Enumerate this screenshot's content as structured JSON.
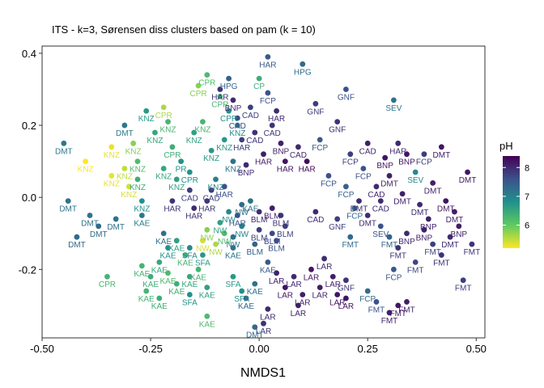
{
  "chart_data": {
    "type": "scatter",
    "title": "ITS - k=3, Sørensen diss clusters based on pam (k = 10)",
    "xlabel": "NMDS1",
    "ylabel": "",
    "xlim": [
      -0.5,
      0.52
    ],
    "ylim": [
      -0.39,
      0.42
    ],
    "xticks": [
      -0.5,
      -0.25,
      0.0,
      0.25,
      0.5
    ],
    "xtick_labels": [
      "-0.50",
      "-0.25",
      "0.00",
      "0.25",
      "0.50"
    ],
    "yticks": [
      -0.2,
      0.0,
      0.2,
      0.4
    ],
    "ytick_labels": [
      "-0.2",
      "0.0",
      "0.2",
      "0.4"
    ],
    "grid": false,
    "legend": {
      "title": "pH",
      "position": "right",
      "range": [
        5.2,
        8.4
      ],
      "ticks": [
        6,
        7,
        8
      ],
      "tick_labels": [
        "6",
        "7",
        "8"
      ],
      "colors": [
        "#fde725",
        "#5ec962",
        "#21918c",
        "#3b528b",
        "#440154"
      ]
    },
    "points": [
      {
        "x": -0.45,
        "y": 0.15,
        "ph": 7.1,
        "label": "DMT"
      },
      {
        "x": -0.44,
        "y": -0.01,
        "ph": 7.2,
        "label": "DMT"
      },
      {
        "x": -0.42,
        "y": -0.11,
        "ph": 7.3,
        "label": "DMT"
      },
      {
        "x": -0.39,
        "y": -0.05,
        "ph": 7.2,
        "label": "DMT"
      },
      {
        "x": -0.37,
        "y": -0.08,
        "ph": 7.3,
        "label": "DMT"
      },
      {
        "x": -0.33,
        "y": -0.06,
        "ph": 7.2,
        "label": "DMT"
      },
      {
        "x": -0.31,
        "y": 0.2,
        "ph": 7.1,
        "label": "DMT"
      },
      {
        "x": -0.4,
        "y": 0.1,
        "ph": 5.2,
        "label": "KNZ"
      },
      {
        "x": -0.34,
        "y": 0.06,
        "ph": 5.3,
        "label": "KNZ"
      },
      {
        "x": -0.34,
        "y": 0.14,
        "ph": 5.3,
        "label": "KNZ"
      },
      {
        "x": -0.31,
        "y": 0.08,
        "ph": 5.5,
        "label": "KNZ"
      },
      {
        "x": -0.3,
        "y": 0.03,
        "ph": 5.4,
        "label": "KNZ"
      },
      {
        "x": -0.29,
        "y": 0.15,
        "ph": 5.8,
        "label": "KNZ"
      },
      {
        "x": -0.28,
        "y": 0.1,
        "ph": 6.2,
        "label": "KNZ"
      },
      {
        "x": -0.28,
        "y": 0.05,
        "ph": 6.4,
        "label": "KNZ"
      },
      {
        "x": -0.27,
        "y": -0.01,
        "ph": 6.8,
        "label": "KNZ"
      },
      {
        "x": -0.26,
        "y": 0.24,
        "ph": 6.7,
        "label": "KNZ"
      },
      {
        "x": -0.24,
        "y": 0.18,
        "ph": 6.5,
        "label": "KNZ"
      },
      {
        "x": -0.22,
        "y": 0.25,
        "ph": 5.6,
        "label": "CPR"
      },
      {
        "x": -0.22,
        "y": 0.08,
        "ph": 6.5,
        "label": "KNZ"
      },
      {
        "x": -0.21,
        "y": 0.21,
        "ph": 6.3,
        "label": "KNZ"
      },
      {
        "x": -0.2,
        "y": 0.14,
        "ph": 6.4,
        "label": "CPR"
      },
      {
        "x": -0.19,
        "y": 0.05,
        "ph": 6.6,
        "label": "KNZ"
      },
      {
        "x": -0.18,
        "y": 0.1,
        "ph": 6.8,
        "label": "PR"
      },
      {
        "x": -0.16,
        "y": 0.07,
        "ph": 6.8,
        "label": "CPR"
      },
      {
        "x": -0.15,
        "y": 0.18,
        "ph": 6.6,
        "label": "KNZ"
      },
      {
        "x": -0.14,
        "y": 0.31,
        "ph": 5.8,
        "label": "CPR"
      },
      {
        "x": -0.13,
        "y": 0.21,
        "ph": 6.3,
        "label": "KNZ"
      },
      {
        "x": -0.12,
        "y": 0.34,
        "ph": 6.2,
        "label": "CPR"
      },
      {
        "x": -0.11,
        "y": 0.13,
        "ph": 6.7,
        "label": "KNZ"
      },
      {
        "x": -0.1,
        "y": 0.05,
        "ph": 7.0,
        "label": "KNZ"
      },
      {
        "x": -0.09,
        "y": 0.28,
        "ph": 6.3,
        "label": "CPR"
      },
      {
        "x": -0.08,
        "y": 0.16,
        "ph": 6.7,
        "label": "KNZ"
      },
      {
        "x": -0.07,
        "y": 0.24,
        "ph": 6.8,
        "label": "CPR"
      },
      {
        "x": -0.06,
        "y": 0.1,
        "ph": 7.2,
        "label": "KNZ"
      },
      {
        "x": -0.05,
        "y": 0.2,
        "ph": 6.9,
        "label": "KNZ"
      },
      {
        "x": -0.16,
        "y": 0.02,
        "ph": 7.8,
        "label": "CAD"
      },
      {
        "x": -0.2,
        "y": -0.01,
        "ph": 7.9,
        "label": "HAR"
      },
      {
        "x": -0.15,
        "y": -0.03,
        "ph": 8.0,
        "label": "HAR"
      },
      {
        "x": -0.12,
        "y": -0.01,
        "ph": 7.9,
        "label": "HAR"
      },
      {
        "x": -0.11,
        "y": 0.02,
        "ph": 7.8,
        "label": "CAD"
      },
      {
        "x": -0.08,
        "y": 0.03,
        "ph": 7.6,
        "label": "HAR"
      },
      {
        "x": -0.09,
        "y": 0.3,
        "ph": 7.9,
        "label": "HAR"
      },
      {
        "x": -0.07,
        "y": 0.33,
        "ph": 7.4,
        "label": "HPG"
      },
      {
        "x": -0.06,
        "y": 0.27,
        "ph": 8.0,
        "label": "BNP"
      },
      {
        "x": -0.05,
        "y": 0.22,
        "ph": 7.7,
        "label": "CAD"
      },
      {
        "x": -0.04,
        "y": 0.16,
        "ph": 7.8,
        "label": "HAR"
      },
      {
        "x": -0.03,
        "y": 0.09,
        "ph": 8.0,
        "label": "BNP"
      },
      {
        "x": -0.02,
        "y": 0.25,
        "ph": 7.8,
        "label": "CAD"
      },
      {
        "x": -0.01,
        "y": 0.18,
        "ph": 7.9,
        "label": "CAD"
      },
      {
        "x": 0.0,
        "y": 0.33,
        "ph": 6.4,
        "label": "CP"
      },
      {
        "x": 0.01,
        "y": 0.12,
        "ph": 8.1,
        "label": "HAR"
      },
      {
        "x": 0.02,
        "y": 0.29,
        "ph": 7.6,
        "label": "FCP"
      },
      {
        "x": 0.03,
        "y": 0.2,
        "ph": 7.9,
        "label": "CAD"
      },
      {
        "x": 0.04,
        "y": 0.24,
        "ph": 8.0,
        "label": "HAR"
      },
      {
        "x": 0.05,
        "y": 0.15,
        "ph": 8.1,
        "label": "BNP"
      },
      {
        "x": 0.06,
        "y": 0.1,
        "ph": 8.2,
        "label": "HAR"
      },
      {
        "x": 0.02,
        "y": 0.39,
        "ph": 7.5,
        "label": "HAR"
      },
      {
        "x": 0.1,
        "y": 0.37,
        "ph": 7.3,
        "label": "HPG"
      },
      {
        "x": 0.09,
        "y": 0.14,
        "ph": 8.0,
        "label": "CAD"
      },
      {
        "x": 0.11,
        "y": 0.1,
        "ph": 8.3,
        "label": "HAR"
      },
      {
        "x": 0.13,
        "y": 0.26,
        "ph": 7.8,
        "label": "GNF"
      },
      {
        "x": 0.14,
        "y": 0.16,
        "ph": 7.5,
        "label": "FCP"
      },
      {
        "x": 0.16,
        "y": 0.06,
        "ph": 7.6,
        "label": "FCP"
      },
      {
        "x": 0.18,
        "y": 0.21,
        "ph": 7.9,
        "label": "GNF"
      },
      {
        "x": 0.2,
        "y": 0.3,
        "ph": 7.6,
        "label": "GNF"
      },
      {
        "x": 0.21,
        "y": 0.12,
        "ph": 7.8,
        "label": "FCP"
      },
      {
        "x": 0.2,
        "y": 0.03,
        "ph": 7.4,
        "label": "FCP"
      },
      {
        "x": 0.22,
        "y": -0.03,
        "ph": 7.3,
        "label": "FCP"
      },
      {
        "x": 0.24,
        "y": 0.08,
        "ph": 7.6,
        "label": "FCP"
      },
      {
        "x": 0.25,
        "y": 0.15,
        "ph": 8.1,
        "label": "CAD"
      },
      {
        "x": 0.27,
        "y": 0.03,
        "ph": 8.0,
        "label": "CAD"
      },
      {
        "x": 0.28,
        "y": -0.01,
        "ph": 8.0,
        "label": "CAD"
      },
      {
        "x": 0.29,
        "y": 0.11,
        "ph": 8.2,
        "label": "BNP"
      },
      {
        "x": 0.3,
        "y": 0.06,
        "ph": 8.1,
        "label": "DMT"
      },
      {
        "x": 0.31,
        "y": 0.27,
        "ph": 7.2,
        "label": "SEV"
      },
      {
        "x": 0.32,
        "y": 0.15,
        "ph": 8.0,
        "label": "HAR"
      },
      {
        "x": 0.33,
        "y": 0.01,
        "ph": 8.1,
        "label": "DMT"
      },
      {
        "x": 0.34,
        "y": 0.12,
        "ph": 8.2,
        "label": "BNP"
      },
      {
        "x": 0.36,
        "y": 0.07,
        "ph": 6.9,
        "label": "SEV"
      },
      {
        "x": 0.37,
        "y": -0.02,
        "ph": 8.0,
        "label": "DMT"
      },
      {
        "x": 0.38,
        "y": 0.12,
        "ph": 7.8,
        "label": "FCP"
      },
      {
        "x": 0.39,
        "y": -0.06,
        "ph": 8.1,
        "label": "BNP"
      },
      {
        "x": 0.4,
        "y": 0.04,
        "ph": 8.1,
        "label": "DMT"
      },
      {
        "x": 0.42,
        "y": 0.14,
        "ph": 8.2,
        "label": "DMT"
      },
      {
        "x": 0.43,
        "y": -0.01,
        "ph": 8.2,
        "label": "DMT"
      },
      {
        "x": 0.45,
        "y": -0.04,
        "ph": 8.1,
        "label": "DMT"
      },
      {
        "x": 0.46,
        "y": -0.08,
        "ph": 8.1,
        "label": "BNP"
      },
      {
        "x": 0.48,
        "y": 0.07,
        "ph": 8.2,
        "label": "DMT"
      },
      {
        "x": 0.49,
        "y": -0.13,
        "ph": 7.9,
        "label": "FMT"
      },
      {
        "x": 0.47,
        "y": -0.23,
        "ph": 7.8,
        "label": "FMT"
      },
      {
        "x": 0.13,
        "y": -0.04,
        "ph": 8.0,
        "label": "CAD"
      },
      {
        "x": 0.18,
        "y": -0.06,
        "ph": 7.8,
        "label": "GNF"
      },
      {
        "x": 0.21,
        "y": -0.11,
        "ph": 7.3,
        "label": "FMT"
      },
      {
        "x": 0.23,
        "y": -0.01,
        "ph": 8.0,
        "label": "DMT"
      },
      {
        "x": 0.25,
        "y": -0.05,
        "ph": 8.0,
        "label": "DMT"
      },
      {
        "x": 0.28,
        "y": -0.08,
        "ph": 7.6,
        "label": "SEV"
      },
      {
        "x": 0.3,
        "y": -0.11,
        "ph": 7.4,
        "label": "FMT"
      },
      {
        "x": 0.31,
        "y": -0.2,
        "ph": 7.5,
        "label": "FCP"
      },
      {
        "x": 0.32,
        "y": -0.14,
        "ph": 7.9,
        "label": "FMT"
      },
      {
        "x": 0.34,
        "y": -0.1,
        "ph": 8.0,
        "label": "BNP"
      },
      {
        "x": 0.36,
        "y": -0.18,
        "ph": 7.7,
        "label": "FMT"
      },
      {
        "x": 0.38,
        "y": -0.09,
        "ph": 8.1,
        "label": "BNP"
      },
      {
        "x": 0.4,
        "y": -0.13,
        "ph": 7.8,
        "label": "FMT"
      },
      {
        "x": 0.42,
        "y": -0.16,
        "ph": 7.9,
        "label": "FMT"
      },
      {
        "x": 0.44,
        "y": -0.11,
        "ph": 8.0,
        "label": "DMT"
      },
      {
        "x": 0.25,
        "y": -0.26,
        "ph": 7.3,
        "label": "FCP"
      },
      {
        "x": 0.27,
        "y": -0.29,
        "ph": 7.6,
        "label": "FMT"
      },
      {
        "x": 0.3,
        "y": -0.32,
        "ph": 8.1,
        "label": "FMT"
      },
      {
        "x": 0.32,
        "y": -0.3,
        "ph": 8.2,
        "label": "FMT"
      },
      {
        "x": 0.34,
        "y": -0.29,
        "ph": 8.1,
        "label": "FMT"
      },
      {
        "x": -0.02,
        "y": -0.01,
        "ph": 7.2,
        "label": "KAE"
      },
      {
        "x": -0.05,
        "y": -0.05,
        "ph": 7.6,
        "label": "HAR"
      },
      {
        "x": 0.0,
        "y": -0.09,
        "ph": 7.8,
        "label": "BLM"
      },
      {
        "x": 0.03,
        "y": -0.1,
        "ph": 7.7,
        "label": "BLM"
      },
      {
        "x": 0.05,
        "y": -0.05,
        "ph": 7.9,
        "label": "BLM"
      },
      {
        "x": 0.04,
        "y": -0.12,
        "ph": 7.6,
        "label": "BLM"
      },
      {
        "x": -0.01,
        "y": -0.13,
        "ph": 7.4,
        "label": "BLM"
      },
      {
        "x": -0.06,
        "y": -0.11,
        "ph": 7.2,
        "label": "NW"
      },
      {
        "x": 0.02,
        "y": -0.18,
        "ph": 7.5,
        "label": "KAE"
      },
      {
        "x": 0.0,
        "y": -0.04,
        "ph": 8.0,
        "label": "BLM"
      },
      {
        "x": -0.09,
        "y": -0.07,
        "ph": 6.6,
        "label": "NW"
      },
      {
        "x": -0.12,
        "y": -0.09,
        "ph": 5.8,
        "label": "NW"
      },
      {
        "x": -0.13,
        "y": -0.12,
        "ph": 5.4,
        "label": "NW"
      },
      {
        "x": -0.1,
        "y": -0.13,
        "ph": 5.6,
        "label": "NW"
      },
      {
        "x": -0.08,
        "y": -0.1,
        "ph": 6.2,
        "label": "NW"
      },
      {
        "x": -0.04,
        "y": -0.08,
        "ph": 7.0,
        "label": "NW"
      },
      {
        "x": -0.04,
        "y": -0.02,
        "ph": 7.3,
        "label": "NW"
      },
      {
        "x": -0.07,
        "y": -0.04,
        "ph": 6.9,
        "label": "NW"
      },
      {
        "x": 0.03,
        "y": -0.03,
        "ph": 8.1,
        "label": "BLM"
      },
      {
        "x": 0.06,
        "y": -0.08,
        "ph": 7.8,
        "label": "BLM"
      },
      {
        "x": -0.27,
        "y": -0.05,
        "ph": 7.1,
        "label": "KAE"
      },
      {
        "x": -0.22,
        "y": -0.1,
        "ph": 7.2,
        "label": "KAE"
      },
      {
        "x": -0.21,
        "y": -0.14,
        "ph": 6.8,
        "label": "KAE"
      },
      {
        "x": -0.19,
        "y": -0.12,
        "ph": 6.6,
        "label": "KAE"
      },
      {
        "x": -0.17,
        "y": -0.16,
        "ph": 6.3,
        "label": "KAE"
      },
      {
        "x": -0.27,
        "y": -0.19,
        "ph": 6.3,
        "label": "KAE"
      },
      {
        "x": -0.25,
        "y": -0.22,
        "ph": 6.4,
        "label": "KAE"
      },
      {
        "x": -0.23,
        "y": -0.18,
        "ph": 6.5,
        "label": "KAE"
      },
      {
        "x": -0.21,
        "y": -0.21,
        "ph": 6.2,
        "label": "KAE"
      },
      {
        "x": -0.19,
        "y": -0.24,
        "ph": 6.4,
        "label": "KAE"
      },
      {
        "x": -0.16,
        "y": -0.22,
        "ph": 6.5,
        "label": "KAE"
      },
      {
        "x": -0.14,
        "y": -0.2,
        "ph": 6.3,
        "label": "KAE"
      },
      {
        "x": -0.12,
        "y": -0.25,
        "ph": 6.6,
        "label": "KAE"
      },
      {
        "x": -0.26,
        "y": -0.26,
        "ph": 6.3,
        "label": "KAE"
      },
      {
        "x": -0.23,
        "y": -0.28,
        "ph": 6.4,
        "label": "KAE"
      },
      {
        "x": -0.12,
        "y": -0.33,
        "ph": 6.2,
        "label": "KAE"
      },
      {
        "x": -0.16,
        "y": -0.14,
        "ph": 6.9,
        "label": "SFA"
      },
      {
        "x": -0.13,
        "y": -0.16,
        "ph": 6.7,
        "label": "SFA"
      },
      {
        "x": -0.16,
        "y": -0.27,
        "ph": 6.8,
        "label": "SFA"
      },
      {
        "x": -0.06,
        "y": -0.22,
        "ph": 6.7,
        "label": "SFA"
      },
      {
        "x": -0.04,
        "y": -0.26,
        "ph": 6.8,
        "label": "SFA"
      },
      {
        "x": -0.01,
        "y": -0.24,
        "ph": 7.2,
        "label": "KAE"
      },
      {
        "x": -0.03,
        "y": -0.28,
        "ph": 7.4,
        "label": "KAE"
      },
      {
        "x": -0.35,
        "y": -0.22,
        "ph": 6.3,
        "label": "CPR"
      },
      {
        "x": -0.06,
        "y": -0.14,
        "ph": 7.2,
        "label": "KAE"
      },
      {
        "x": 0.04,
        "y": -0.21,
        "ph": 8.1,
        "label": "LAR"
      },
      {
        "x": 0.06,
        "y": -0.25,
        "ph": 8.2,
        "label": "LAR"
      },
      {
        "x": 0.08,
        "y": -0.22,
        "ph": 8.0,
        "label": "LAR"
      },
      {
        "x": 0.1,
        "y": -0.27,
        "ph": 8.1,
        "label": "LAR"
      },
      {
        "x": 0.12,
        "y": -0.2,
        "ph": 8.2,
        "label": "LAR"
      },
      {
        "x": 0.14,
        "y": -0.25,
        "ph": 8.1,
        "label": "LAR"
      },
      {
        "x": 0.15,
        "y": -0.17,
        "ph": 8.0,
        "label": "LAR"
      },
      {
        "x": 0.17,
        "y": -0.22,
        "ph": 8.1,
        "label": "LAR"
      },
      {
        "x": 0.18,
        "y": -0.27,
        "ph": 8.2,
        "label": "LAR"
      },
      {
        "x": 0.2,
        "y": -0.23,
        "ph": 7.9,
        "label": "GNF"
      },
      {
        "x": 0.2,
        "y": -0.28,
        "ph": 8.2,
        "label": "LAR"
      },
      {
        "x": 0.09,
        "y": -0.3,
        "ph": 8.1,
        "label": "LAR"
      },
      {
        "x": 0.02,
        "y": -0.31,
        "ph": 8.0,
        "label": "LAR"
      },
      {
        "x": 0.01,
        "y": -0.35,
        "ph": 7.9,
        "label": "LAR"
      },
      {
        "x": -0.01,
        "y": -0.36,
        "ph": 7.3,
        "label": "DMT"
      }
    ]
  }
}
